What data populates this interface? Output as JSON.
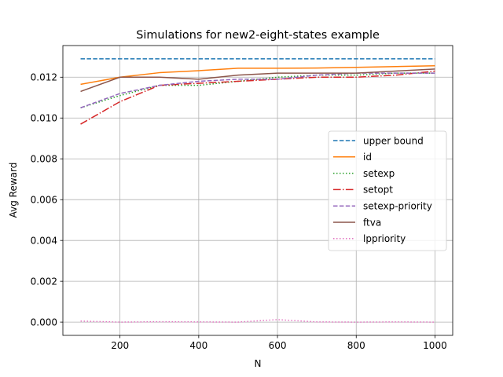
{
  "chart_data": {
    "type": "line",
    "title": "Simulations for new2-eight-states example",
    "xlabel": "N",
    "ylabel": "Avg Reward",
    "xlim": [
      55,
      1045
    ],
    "ylim": [
      -0.00065,
      0.01355
    ],
    "xticks": [
      200,
      400,
      600,
      800,
      1000
    ],
    "yticks": [
      0.0,
      0.002,
      0.004,
      0.006,
      0.008,
      0.01,
      0.012
    ],
    "ytick_labels": [
      "0.000",
      "0.002",
      "0.004",
      "0.006",
      "0.008",
      "0.010",
      "0.012"
    ],
    "grid": true,
    "legend_position": "center-right",
    "x": [
      100,
      200,
      300,
      400,
      500,
      600,
      700,
      800,
      900,
      1000
    ],
    "series": [
      {
        "name": "upper bound",
        "color": "#1f77b4",
        "dash": "dashed",
        "values": [
          0.0129,
          0.0129,
          0.0129,
          0.0129,
          0.0129,
          0.0129,
          0.0129,
          0.0129,
          0.0129,
          0.0129
        ]
      },
      {
        "name": "id",
        "color": "#ff7f0e",
        "dash": "solid",
        "values": [
          0.01165,
          0.012,
          0.01222,
          0.01232,
          0.01244,
          0.01244,
          0.01245,
          0.01248,
          0.01252,
          0.01256
        ]
      },
      {
        "name": "setexp",
        "color": "#2ca02c",
        "dash": "dotted",
        "values": [
          0.0105,
          0.0111,
          0.0116,
          0.0116,
          0.0118,
          0.012,
          0.0121,
          0.0121,
          0.0122,
          0.0122
        ]
      },
      {
        "name": "setopt",
        "color": "#d62728",
        "dash": "dashdot",
        "values": [
          0.0097,
          0.0108,
          0.0116,
          0.0117,
          0.0118,
          0.0119,
          0.012,
          0.012,
          0.0121,
          0.0123
        ]
      },
      {
        "name": "setexp-priority",
        "color": "#9467bd",
        "dash": "dashed",
        "values": [
          0.0105,
          0.0112,
          0.0116,
          0.0118,
          0.0119,
          0.0119,
          0.0121,
          0.0122,
          0.0122,
          0.0122
        ]
      },
      {
        "name": "ftva",
        "color": "#8c564b",
        "dash": "solid",
        "values": [
          0.0113,
          0.012,
          0.012,
          0.0119,
          0.0121,
          0.0122,
          0.0122,
          0.0122,
          0.0123,
          0.0124
        ]
      },
      {
        "name": "lppriority",
        "color": "#e377c2",
        "dash": "dotted",
        "values": [
          5e-05,
          0.0,
          2e-05,
          1e-05,
          0.0,
          0.00012,
          1e-05,
          0.0,
          1e-05,
          0.0
        ]
      }
    ]
  }
}
